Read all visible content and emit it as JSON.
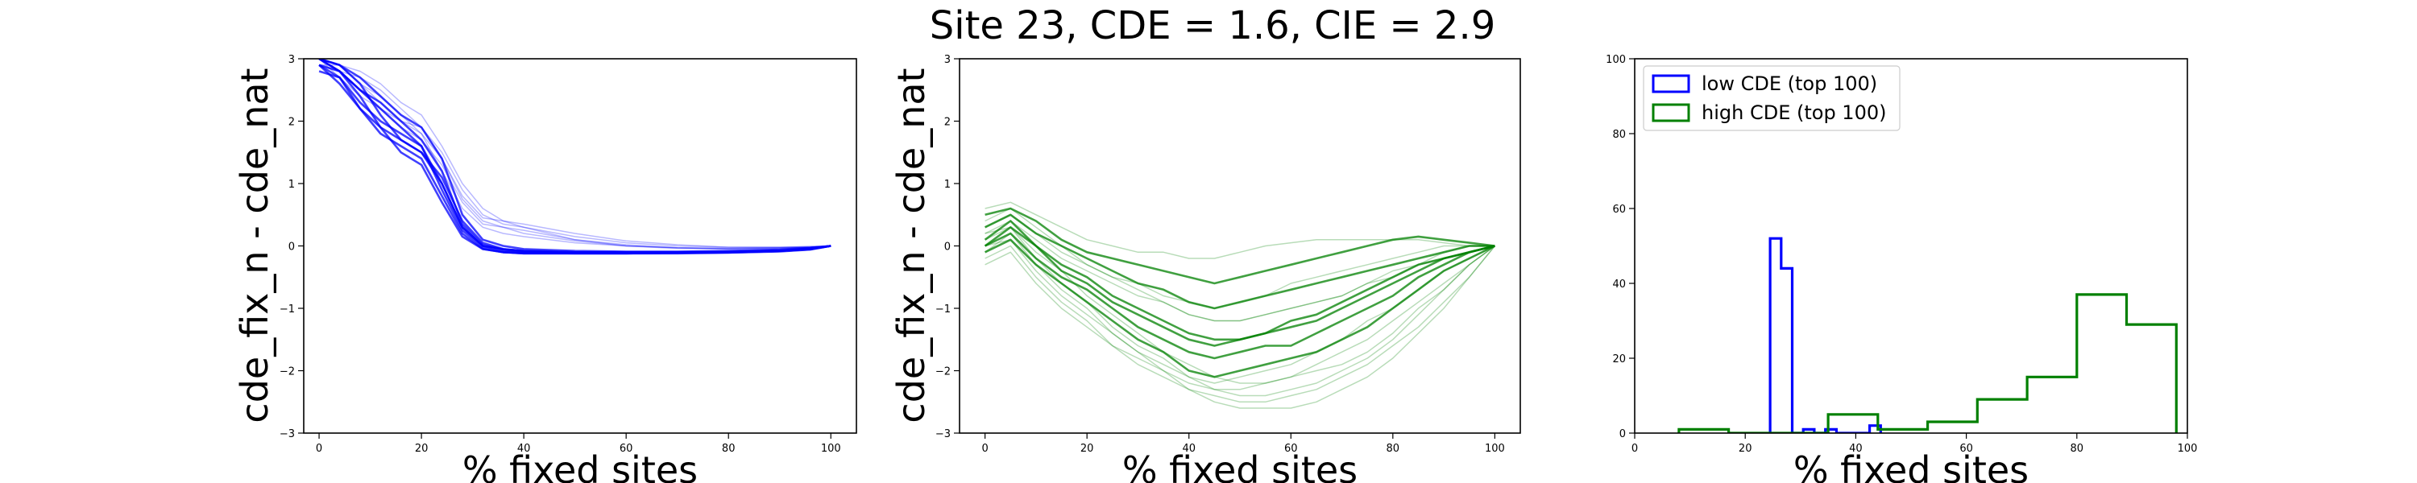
{
  "figure": {
    "title": "Site 23, CDE = 1.6, CIE = 2.9"
  },
  "colors": {
    "blue": "#0000ff",
    "green": "#008000"
  },
  "chart_data": [
    {
      "type": "line",
      "panel": "left",
      "color": "#0000ff",
      "xlabel": "% fixed sites",
      "ylabel": "cde_fix_n - cde_nat",
      "xlim": [
        -3,
        105
      ],
      "ylim": [
        -3,
        3
      ],
      "xticks": [
        0,
        20,
        40,
        60,
        80,
        100
      ],
      "yticks": [
        -3,
        -2,
        -1,
        0,
        1,
        2,
        3
      ],
      "x": [
        0,
        4,
        8,
        12,
        16,
        20,
        24,
        28,
        32,
        36,
        40,
        50,
        60,
        70,
        80,
        90,
        96,
        100
      ],
      "series": [
        {
          "values": [
            3.0,
            2.8,
            2.5,
            2.2,
            1.9,
            1.6,
            1.0,
            0.3,
            0.0,
            -0.05,
            -0.08,
            -0.1,
            -0.1,
            -0.1,
            -0.1,
            -0.08,
            -0.05,
            0.0
          ]
        },
        {
          "values": [
            2.9,
            2.6,
            2.2,
            1.8,
            1.6,
            1.4,
            0.8,
            0.2,
            -0.05,
            -0.1,
            -0.12,
            -0.12,
            -0.12,
            -0.12,
            -0.11,
            -0.09,
            -0.06,
            0.0
          ]
        },
        {
          "values": [
            3.0,
            2.9,
            2.6,
            2.1,
            1.7,
            1.5,
            1.1,
            0.4,
            0.05,
            -0.05,
            -0.08,
            -0.1,
            -0.1,
            -0.1,
            -0.1,
            -0.08,
            -0.04,
            0.0
          ]
        },
        {
          "values": [
            2.8,
            2.7,
            2.3,
            2.0,
            1.8,
            1.6,
            0.9,
            0.25,
            -0.02,
            -0.1,
            -0.12,
            -0.12,
            -0.12,
            -0.11,
            -0.1,
            -0.08,
            -0.05,
            0.0
          ]
        },
        {
          "values": [
            3.0,
            2.9,
            2.7,
            2.4,
            2.1,
            1.9,
            1.4,
            0.5,
            0.1,
            0.0,
            -0.05,
            -0.08,
            -0.09,
            -0.09,
            -0.08,
            -0.06,
            -0.03,
            0.0
          ]
        },
        {
          "values": [
            2.9,
            2.8,
            2.4,
            1.9,
            1.5,
            1.3,
            0.7,
            0.15,
            -0.05,
            -0.1,
            -0.11,
            -0.12,
            -0.12,
            -0.11,
            -0.1,
            -0.08,
            -0.05,
            0.0
          ]
        },
        {
          "values": [
            3.0,
            2.8,
            2.5,
            2.3,
            2.0,
            1.7,
            1.2,
            0.35,
            0.02,
            -0.06,
            -0.09,
            -0.1,
            -0.1,
            -0.1,
            -0.09,
            -0.07,
            -0.04,
            0.0
          ]
        },
        {
          "values": [
            2.9,
            2.7,
            2.2,
            1.9,
            1.7,
            1.5,
            1.0,
            0.3,
            0.0,
            -0.07,
            -0.1,
            -0.11,
            -0.11,
            -0.1,
            -0.1,
            -0.08,
            -0.05,
            0.0
          ]
        }
      ],
      "faint_series": [
        {
          "values": [
            3.0,
            2.9,
            2.6,
            2.3,
            2.0,
            1.9,
            1.5,
            0.9,
            0.5,
            0.35,
            0.3,
            0.15,
            0.05,
            0.0,
            -0.02,
            -0.02,
            -0.01,
            0.0
          ]
        },
        {
          "values": [
            3.0,
            2.8,
            2.7,
            2.5,
            2.2,
            1.9,
            1.4,
            0.8,
            0.45,
            0.4,
            0.3,
            0.1,
            0.0,
            -0.03,
            -0.04,
            -0.03,
            -0.02,
            0.0
          ]
        },
        {
          "values": [
            2.9,
            2.8,
            2.5,
            2.2,
            1.9,
            1.7,
            1.3,
            0.7,
            0.35,
            0.3,
            0.25,
            0.1,
            0.02,
            -0.03,
            -0.05,
            -0.04,
            -0.02,
            0.0
          ]
        },
        {
          "values": [
            3.0,
            2.9,
            2.8,
            2.6,
            2.3,
            2.1,
            1.6,
            1.0,
            0.6,
            0.4,
            0.35,
            0.2,
            0.08,
            0.02,
            -0.02,
            -0.02,
            -0.01,
            0.0
          ]
        },
        {
          "values": [
            3.0,
            2.7,
            2.4,
            2.2,
            2.0,
            1.8,
            1.2,
            0.6,
            0.3,
            0.2,
            0.15,
            0.05,
            0.0,
            -0.04,
            -0.05,
            -0.04,
            -0.02,
            0.0
          ]
        },
        {
          "values": [
            2.9,
            2.9,
            2.6,
            2.4,
            2.1,
            1.8,
            1.4,
            0.75,
            0.4,
            0.3,
            0.2,
            0.08,
            0.0,
            -0.03,
            -0.04,
            -0.03,
            -0.02,
            0.0
          ]
        }
      ]
    },
    {
      "type": "line",
      "panel": "middle",
      "color": "#008000",
      "xlabel": "% fixed sites",
      "ylabel": "cde_fix_n - cde_nat",
      "xlim": [
        -5,
        105
      ],
      "ylim": [
        -3,
        3
      ],
      "xticks": [
        0,
        20,
        40,
        60,
        80,
        100
      ],
      "yticks": [
        -3,
        -2,
        -1,
        0,
        1,
        2,
        3
      ],
      "x": [
        0,
        5,
        10,
        15,
        20,
        25,
        30,
        35,
        40,
        45,
        50,
        55,
        60,
        65,
        70,
        75,
        80,
        85,
        90,
        95,
        100
      ],
      "series": [
        {
          "values": [
            0.1,
            0.4,
            0.0,
            -0.3,
            -0.5,
            -0.8,
            -1.0,
            -1.2,
            -1.4,
            -1.5,
            -1.5,
            -1.4,
            -1.3,
            -1.2,
            -1.0,
            -0.8,
            -0.6,
            -0.4,
            -0.2,
            -0.1,
            0.0
          ]
        },
        {
          "values": [
            0.0,
            0.2,
            -0.2,
            -0.5,
            -0.7,
            -1.0,
            -1.3,
            -1.5,
            -1.7,
            -1.8,
            -1.7,
            -1.6,
            -1.6,
            -1.4,
            -1.2,
            -1.0,
            -0.8,
            -0.5,
            -0.3,
            -0.1,
            0.0
          ]
        },
        {
          "values": [
            0.3,
            0.5,
            0.2,
            0.0,
            -0.2,
            -0.4,
            -0.6,
            -0.7,
            -0.9,
            -1.0,
            -0.9,
            -0.8,
            -0.7,
            -0.6,
            -0.5,
            -0.4,
            -0.3,
            -0.2,
            -0.1,
            0.0,
            0.0
          ]
        },
        {
          "values": [
            -0.1,
            0.1,
            -0.3,
            -0.6,
            -0.9,
            -1.2,
            -1.5,
            -1.7,
            -2.0,
            -2.1,
            -2.0,
            -1.9,
            -1.8,
            -1.7,
            -1.5,
            -1.3,
            -1.0,
            -0.7,
            -0.4,
            -0.2,
            0.0
          ]
        },
        {
          "values": [
            0.5,
            0.6,
            0.4,
            0.1,
            -0.1,
            -0.2,
            -0.3,
            -0.4,
            -0.5,
            -0.6,
            -0.5,
            -0.4,
            -0.3,
            -0.2,
            -0.1,
            0.0,
            0.1,
            0.15,
            0.1,
            0.05,
            0.0
          ]
        },
        {
          "values": [
            0.0,
            0.3,
            0.0,
            -0.4,
            -0.6,
            -0.9,
            -1.1,
            -1.3,
            -1.5,
            -1.6,
            -1.5,
            -1.4,
            -1.2,
            -1.1,
            -0.9,
            -0.7,
            -0.5,
            -0.3,
            -0.2,
            -0.1,
            0.0
          ]
        }
      ],
      "faint_series": [
        {
          "values": [
            -0.2,
            0.0,
            -0.5,
            -0.9,
            -1.2,
            -1.6,
            -1.9,
            -2.1,
            -2.3,
            -2.4,
            -2.5,
            -2.5,
            -2.4,
            -2.3,
            -2.1,
            -1.9,
            -1.6,
            -1.3,
            -0.9,
            -0.5,
            0.0
          ]
        },
        {
          "values": [
            0.2,
            0.3,
            -0.1,
            -0.4,
            -0.8,
            -1.1,
            -1.4,
            -1.7,
            -1.9,
            -2.1,
            -2.2,
            -2.2,
            -2.1,
            -2.0,
            -1.9,
            -1.7,
            -1.4,
            -1.0,
            -0.7,
            -0.3,
            0.0
          ]
        },
        {
          "values": [
            0.4,
            0.6,
            0.3,
            0.0,
            -0.3,
            -0.5,
            -0.7,
            -0.9,
            -1.1,
            -1.2,
            -1.2,
            -1.1,
            -1.0,
            -0.9,
            -0.8,
            -0.6,
            -0.5,
            -0.3,
            -0.2,
            -0.1,
            0.0
          ]
        },
        {
          "values": [
            0.0,
            0.1,
            -0.4,
            -0.8,
            -1.1,
            -1.4,
            -1.7,
            -2.0,
            -2.3,
            -2.5,
            -2.6,
            -2.6,
            -2.6,
            -2.5,
            -2.3,
            -2.1,
            -1.8,
            -1.4,
            -1.0,
            -0.5,
            0.0
          ]
        },
        {
          "values": [
            0.6,
            0.7,
            0.5,
            0.3,
            0.1,
            0.0,
            -0.1,
            -0.1,
            -0.2,
            -0.2,
            -0.1,
            0.0,
            0.05,
            0.1,
            0.1,
            0.1,
            0.1,
            0.1,
            0.05,
            0.0,
            0.0
          ]
        },
        {
          "values": [
            -0.3,
            -0.1,
            -0.6,
            -1.0,
            -1.3,
            -1.6,
            -1.8,
            -2.0,
            -2.2,
            -2.3,
            -2.3,
            -2.2,
            -2.1,
            -1.9,
            -1.7,
            -1.5,
            -1.2,
            -0.9,
            -0.6,
            -0.3,
            0.0
          ]
        },
        {
          "values": [
            0.2,
            0.4,
            0.1,
            -0.2,
            -0.4,
            -0.6,
            -0.8,
            -0.9,
            -1.1,
            -1.2,
            -1.2,
            -1.1,
            -1.0,
            -0.9,
            -0.8,
            -0.6,
            -0.4,
            -0.3,
            -0.1,
            0.0,
            0.0
          ]
        },
        {
          "values": [
            0.1,
            0.3,
            -0.2,
            -0.6,
            -0.9,
            -1.3,
            -1.6,
            -1.8,
            -2.1,
            -2.2,
            -2.1,
            -2.0,
            -1.9,
            -1.7,
            -1.5,
            -1.2,
            -1.0,
            -0.7,
            -0.4,
            -0.2,
            0.0
          ]
        },
        {
          "values": [
            0.3,
            0.5,
            0.2,
            -0.1,
            -0.3,
            -0.5,
            -0.6,
            -0.8,
            -0.9,
            -1.0,
            -0.9,
            -0.8,
            -0.6,
            -0.5,
            -0.4,
            -0.3,
            -0.2,
            -0.1,
            0.0,
            0.0,
            0.0
          ]
        },
        {
          "values": [
            -0.1,
            0.2,
            -0.3,
            -0.7,
            -1.0,
            -1.4,
            -1.7,
            -1.9,
            -2.1,
            -2.3,
            -2.4,
            -2.4,
            -2.3,
            -2.2,
            -2.0,
            -1.8,
            -1.5,
            -1.1,
            -0.7,
            -0.3,
            0.0
          ]
        }
      ]
    },
    {
      "type": "histogram",
      "panel": "right",
      "xlabel": "% fixed sites",
      "ylabel": "",
      "xlim": [
        0,
        100
      ],
      "ylim": [
        0,
        100
      ],
      "xticks": [
        0,
        20,
        40,
        60,
        80,
        100
      ],
      "yticks": [
        0,
        20,
        40,
        60,
        80,
        100
      ],
      "legend_position": "upper-left",
      "series": [
        {
          "name": "low CDE (top 100)",
          "color": "#0000ff",
          "bins": [
            [
              24.5,
              26.5,
              52
            ],
            [
              26.5,
              28.5,
              44
            ],
            [
              30.5,
              32.5,
              1
            ],
            [
              34.5,
              36.5,
              1
            ],
            [
              42.5,
              44.5,
              2
            ]
          ]
        },
        {
          "name": "high CDE (top 100)",
          "color": "#008000",
          "bins": [
            [
              8,
              17,
              1
            ],
            [
              17,
              26,
              0
            ],
            [
              26,
              35,
              0
            ],
            [
              35,
              44,
              5
            ],
            [
              44,
              53,
              1
            ],
            [
              53,
              62,
              3
            ],
            [
              62,
              71,
              9
            ],
            [
              71,
              80,
              15
            ],
            [
              80,
              89,
              37
            ],
            [
              89,
              98,
              29
            ]
          ]
        }
      ]
    }
  ]
}
